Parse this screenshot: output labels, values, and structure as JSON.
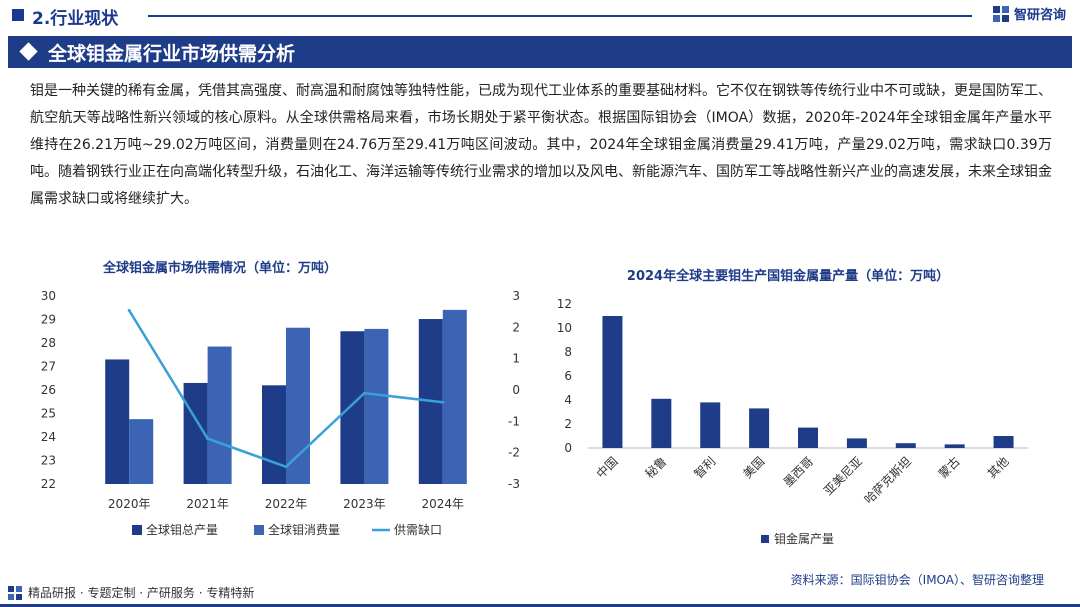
{
  "header": {
    "section": "2.行业现状",
    "logo_text": "智研咨询"
  },
  "banner": {
    "title": "全球钼金属行业市场供需分析"
  },
  "paragraph": "钼是一种关键的稀有金属，凭借其高强度、耐高温和耐腐蚀等独特性能，已成为现代工业体系的重要基础材料。它不仅在钢铁等传统行业中不可或缺，更是国防军工、航空航天等战略性新兴领域的核心原料。从全球供需格局来看，市场长期处于紧平衡状态。根据国际钼协会（IMOA）数据，2020年-2024年全球钼金属年产量水平维持在26.21万吨~29.02万吨区间，消费量则在24.76万至29.41万吨区间波动。其中，2024年全球钼金属消费量29.41万吨，产量29.02万吨，需求缺口0.39万吨。随着钢铁行业正在向高端化转型升级，石油化工、海洋运输等传统行业需求的增加以及风电、新能源汽车、国防军工等战略性新兴产业的高速发展，未来全球钼金属需求缺口或将继续扩大。",
  "colors": {
    "primary": "#1f3c88",
    "secondary": "#3b64b4",
    "line": "#3aa0d8"
  },
  "chart_data": [
    {
      "type": "bar+line",
      "title": "全球钼金属市场供需情况（单位：万吨）",
      "categories": [
        "2020年",
        "2021年",
        "2022年",
        "2023年",
        "2024年"
      ],
      "series": [
        {
          "name": "全球钼总产量",
          "type": "bar",
          "axis": "left",
          "values": [
            27.3,
            26.3,
            26.2,
            28.5,
            29.02
          ]
        },
        {
          "name": "全球钼消费量",
          "type": "bar",
          "axis": "left",
          "values": [
            24.76,
            27.85,
            28.65,
            28.6,
            29.41
          ]
        },
        {
          "name": "供需缺口",
          "type": "line",
          "axis": "right",
          "values": [
            2.54,
            -1.55,
            -2.45,
            -0.1,
            -0.39
          ]
        }
      ],
      "ylim_left": [
        22,
        30
      ],
      "yticks_left": [
        "22",
        "23",
        "24",
        "25",
        "26",
        "27",
        "28",
        "29",
        "30"
      ],
      "ylim_right": [
        -3,
        3
      ],
      "yticks_right": [
        "-3",
        "-2",
        "-1",
        "0",
        "1",
        "2",
        "3"
      ],
      "legend_position": "bottom"
    },
    {
      "type": "bar",
      "title": "2024年全球主要钼生产国钼金属量产量（单位：万吨）",
      "categories": [
        "中国",
        "秘鲁",
        "智利",
        "美国",
        "墨西哥",
        "亚美尼亚",
        "哈萨克斯坦",
        "蒙古",
        "其他"
      ],
      "series": [
        {
          "name": "钼金属产量",
          "values": [
            11.0,
            4.1,
            3.8,
            3.3,
            1.7,
            0.8,
            0.4,
            0.3,
            1.0
          ]
        }
      ],
      "ylim": [
        0,
        12
      ],
      "yticks": [
        "0",
        "2",
        "4",
        "6",
        "8",
        "10",
        "12"
      ],
      "legend_position": "bottom"
    }
  ],
  "footer": {
    "tagline": "精品研报 · 专题定制 · 产研服务 · 专精特新",
    "source": "资料来源：国际钼协会（IMOA）、智研咨询整理"
  }
}
